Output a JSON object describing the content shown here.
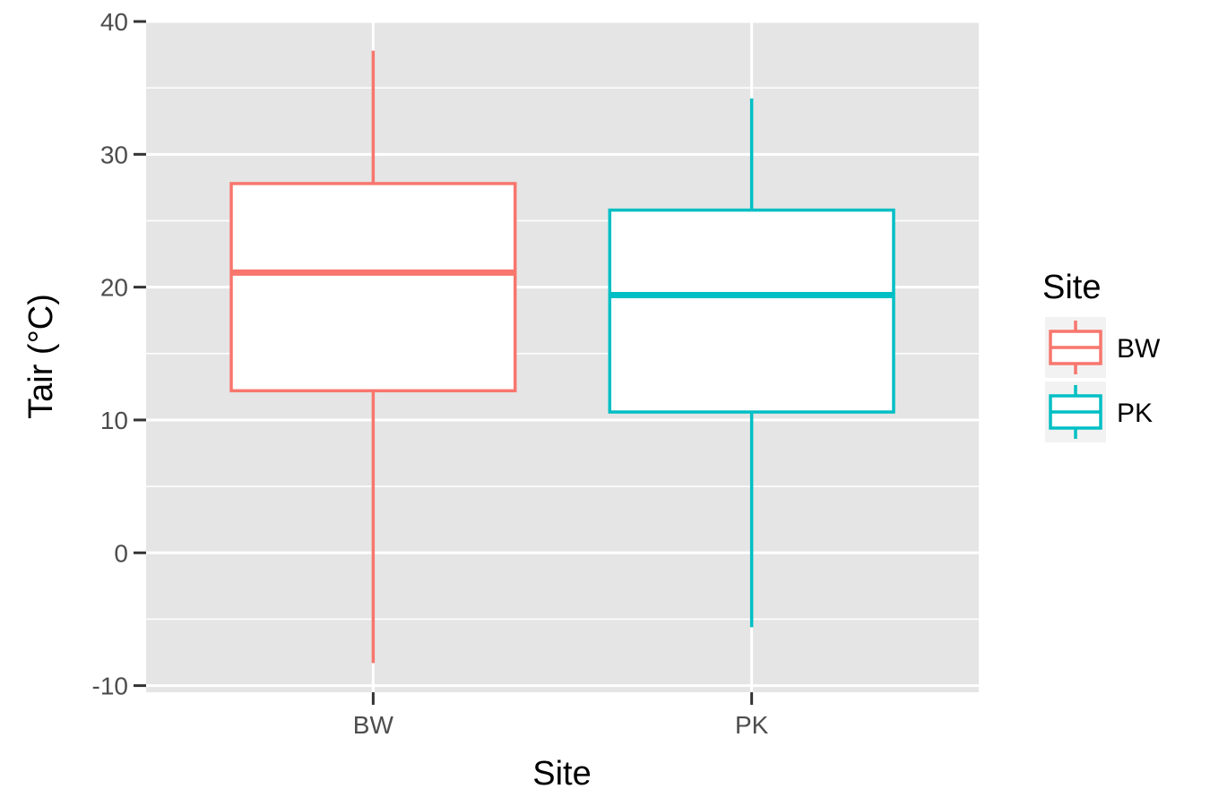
{
  "chart_data": {
    "type": "boxplot",
    "xlabel": "Site",
    "ylabel": "Tair (°C)",
    "ylim": [
      -10.5,
      40
    ],
    "yticks": [
      -10,
      0,
      10,
      20,
      30,
      40
    ],
    "ytick_labels": [
      "-10",
      "0",
      "10",
      "20",
      "30",
      "40"
    ],
    "grid": true,
    "legend": {
      "title": "Site",
      "position": "right",
      "entries": [
        "BW",
        "PK"
      ]
    },
    "categories": [
      "BW",
      "PK"
    ],
    "series": [
      {
        "name": "BW",
        "color": "#F8766D",
        "whisker_low": -8.3,
        "q1": 12.2,
        "median": 21.1,
        "q3": 27.8,
        "whisker_high": 37.8
      },
      {
        "name": "PK",
        "color": "#00BFC4",
        "whisker_low": -5.6,
        "q1": 10.6,
        "median": 19.4,
        "q3": 25.8,
        "whisker_high": 34.2
      }
    ]
  }
}
